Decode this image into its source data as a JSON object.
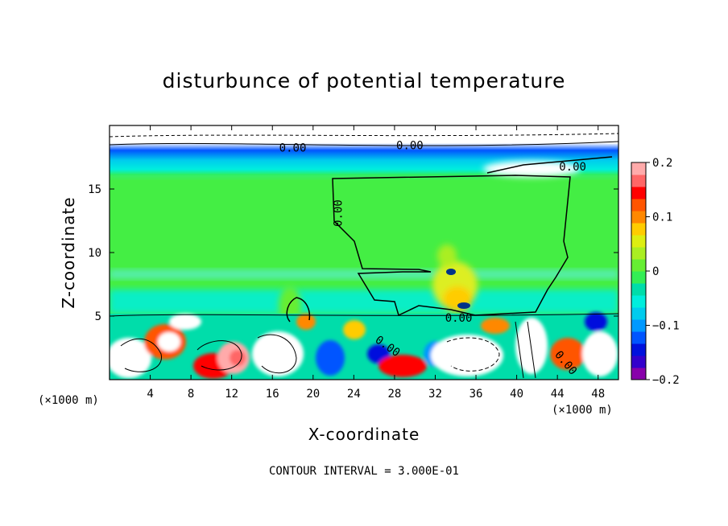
{
  "chart_data": {
    "type": "heatmap",
    "title": "disturbunce of potential temperature",
    "xlabel": "X-coordinate",
    "ylabel": "Z-coordinate",
    "x_unit": "(×1000 m)",
    "z_unit": "(×1000 m)",
    "xlim": [
      0,
      50
    ],
    "ylim": [
      0,
      20
    ],
    "x_ticks": [
      4,
      8,
      12,
      16,
      20,
      24,
      28,
      32,
      36,
      40,
      44,
      48
    ],
    "y_ticks": [
      5,
      10,
      15
    ],
    "colorbar": {
      "range": [
        -0.2,
        0.2
      ],
      "tick_values": [
        0.2,
        0.1,
        0,
        -0.1,
        -0.2
      ],
      "tick_labels": [
        "0.2",
        "0.1",
        "0",
        "−0.1",
        "−0.2"
      ],
      "colors": [
        "#8800aa",
        "#3300cc",
        "#0011dd",
        "#0055ff",
        "#0099ff",
        "#00ccee",
        "#00eedd",
        "#00ddaa",
        "#33ee55",
        "#66ee33",
        "#aaee22",
        "#ddee11",
        "#ffcc00",
        "#ff8800",
        "#ff5500",
        "#ff0000",
        "#ff6666",
        "#ffaaaa"
      ]
    },
    "contour_labels": [
      {
        "text": "0.00",
        "x": 22.5,
        "z": 13.1,
        "angle": -90
      },
      {
        "text": "0.00",
        "x": 34.3,
        "z": 4.8,
        "angle": 0
      },
      {
        "text": "0.00",
        "x": 27.3,
        "z": 2.6,
        "angle": 35
      },
      {
        "text": "0.00",
        "x": 44.8,
        "z": 1.3,
        "angle": 50
      },
      {
        "text": "0.00",
        "x": 45.5,
        "z": 16.7,
        "angle": 0
      },
      {
        "text": "0.00",
        "x": 29.5,
        "z": 18.4,
        "angle": 0
      },
      {
        "text": "0.00",
        "x": 18.0,
        "z": 18.2,
        "angle": 0
      }
    ],
    "contour_interval_text": "CONTOUR INTERVAL = 3.000E-01"
  }
}
